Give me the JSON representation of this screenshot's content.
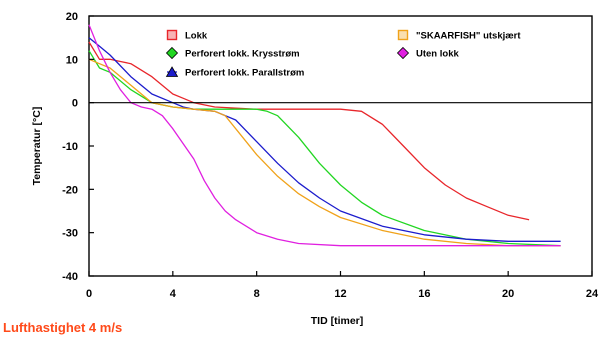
{
  "chart_data": {
    "type": "line",
    "xlabel": "TID  [timer]",
    "ylabel": "Temperatur  [°C]",
    "xlim": [
      0,
      24
    ],
    "ylim": [
      -40,
      20
    ],
    "xticks": [
      0,
      4,
      8,
      12,
      16,
      20,
      24
    ],
    "yticks": [
      20,
      10,
      0,
      -10,
      -20,
      -30,
      -40
    ],
    "grid": false,
    "zero_line": true,
    "legend_placement": "top",
    "series": [
      {
        "name": "Lokk",
        "color": "#e8262b",
        "marker": "square",
        "x": [
          0,
          0.5,
          1,
          1.5,
          2,
          3,
          4,
          4.5,
          5,
          6,
          8,
          10,
          12,
          13,
          14,
          15,
          16,
          17,
          18,
          19,
          20,
          21
        ],
        "y": [
          14,
          10,
          10,
          9.5,
          9,
          6,
          2,
          1,
          0,
          -1,
          -1.5,
          -1.5,
          -1.5,
          -2,
          -5,
          -10,
          -15,
          -19,
          -22,
          -24,
          -26,
          -27
        ]
      },
      {
        "name": "Perforert lokk. Krysstrøm",
        "color": "#22d622",
        "marker": "diamond",
        "x": [
          0,
          0.5,
          1,
          2,
          3,
          4,
          5,
          6,
          7,
          8,
          8.5,
          9,
          10,
          11,
          12,
          13,
          14,
          16,
          18,
          20,
          22.5
        ],
        "y": [
          12,
          8,
          7,
          3,
          0,
          -1,
          -1.5,
          -1.5,
          -1.5,
          -1.5,
          -2,
          -3,
          -8,
          -14,
          -19,
          -23,
          -26,
          -29.5,
          -31.5,
          -32.5,
          -33
        ]
      },
      {
        "name": "Perforert lokk. Parallstrøm",
        "color": "#1c1ccc",
        "marker": "triangle",
        "x": [
          0,
          0.5,
          1,
          2,
          3,
          4,
          4.5,
          5,
          6,
          7,
          8,
          9,
          10,
          11,
          12,
          14,
          16,
          18,
          20,
          22.5
        ],
        "y": [
          15,
          13,
          11,
          6,
          2,
          0,
          -1,
          -1.5,
          -2,
          -4,
          -9,
          -14,
          -18.5,
          -22,
          -25,
          -28.5,
          -30.5,
          -31.5,
          -32,
          -32
        ]
      },
      {
        "name": "\"SKAARFISH\" utskjært",
        "color": "#f0a21a",
        "marker": "square",
        "x": [
          0,
          0.5,
          1,
          2,
          3,
          4,
          5,
          6,
          6.5,
          7,
          8,
          9,
          10,
          11,
          12,
          14,
          16,
          18,
          20,
          22.5
        ],
        "y": [
          10,
          9,
          8,
          4,
          0,
          -1,
          -1.5,
          -2,
          -3,
          -6,
          -12,
          -17,
          -21,
          -24,
          -26.5,
          -29.5,
          -31.5,
          -32.5,
          -33,
          -33
        ]
      },
      {
        "name": "Uten lokk",
        "color": "#e020e0",
        "marker": "diamond",
        "x": [
          0,
          0.5,
          1,
          1.5,
          2,
          2.5,
          3,
          3.5,
          4,
          5,
          5.5,
          6,
          6.5,
          7,
          8,
          9,
          10,
          12,
          14,
          16,
          18,
          20,
          22.5
        ],
        "y": [
          18,
          12,
          7,
          3,
          0,
          -1,
          -1.5,
          -3,
          -6,
          -13,
          -18,
          -22,
          -25,
          -27,
          -30,
          -31.5,
          -32.5,
          -33,
          -33,
          -33,
          -33,
          -33,
          -33
        ]
      }
    ]
  },
  "footnote": "Lufthastighet  4 m/s"
}
